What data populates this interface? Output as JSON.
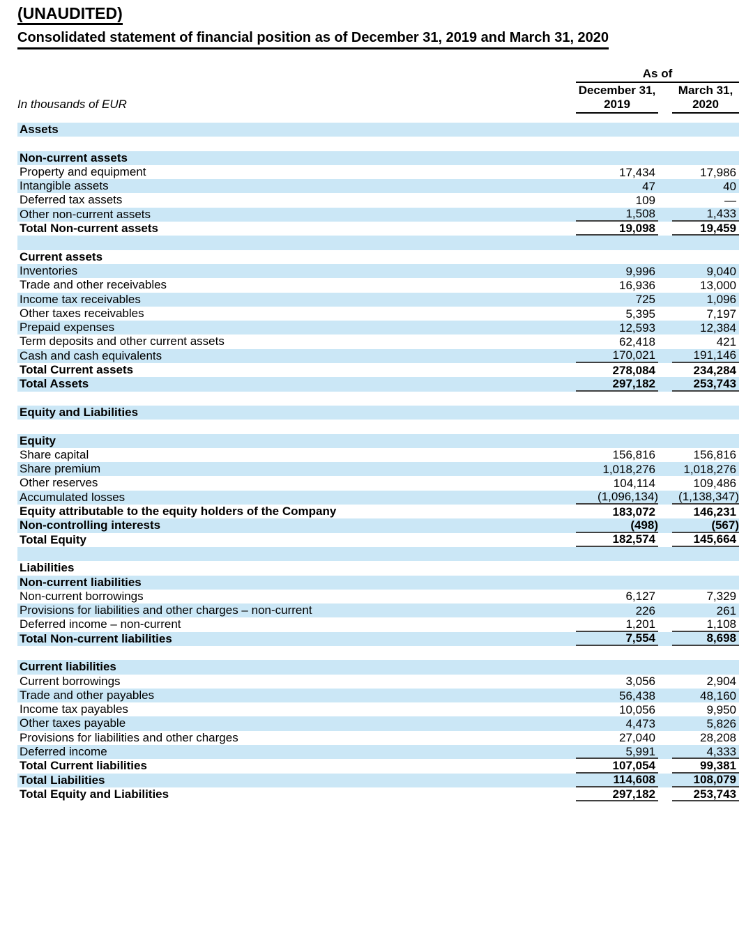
{
  "page": {
    "title": "(UNAUDITED)",
    "subtitle": "Consolidated statement of financial position as of December 31, 2019 and March 31, 2020",
    "unit_note": "In thousands of EUR",
    "group_header": "As of",
    "columns": [
      {
        "line1": "December 31,",
        "line2": "2019"
      },
      {
        "line1": "March 31,",
        "line2": "2020"
      }
    ]
  },
  "colors": {
    "stripe_blue": "#cbe7f6",
    "rule_dark": "#404040",
    "text": "#000000"
  },
  "rows": [
    {
      "type": "section",
      "label": "Assets",
      "v1": "",
      "v2": ""
    },
    {
      "type": "blank",
      "label": "",
      "v1": "",
      "v2": ""
    },
    {
      "type": "section",
      "label": "Non-current assets",
      "v1": "",
      "v2": ""
    },
    {
      "type": "item",
      "label": "Property and equipment",
      "v1": "17,434",
      "v2": "17,986"
    },
    {
      "type": "item",
      "label": "Intangible assets",
      "v1": "47",
      "v2": "40"
    },
    {
      "type": "item",
      "label": "Deferred tax assets",
      "v1": "109",
      "v2": "—"
    },
    {
      "type": "item",
      "label": "Other non-current assets",
      "v1": "1,508",
      "v2": "1,433",
      "line": true
    },
    {
      "type": "total",
      "label": "Total Non-current assets",
      "v1": "19,098",
      "v2": "19,459",
      "line": true
    },
    {
      "type": "blank",
      "label": "",
      "v1": "",
      "v2": ""
    },
    {
      "type": "section",
      "label": "Current assets",
      "v1": "",
      "v2": ""
    },
    {
      "type": "item",
      "label": "Inventories",
      "v1": "9,996",
      "v2": "9,040"
    },
    {
      "type": "item",
      "label": "Trade and other receivables",
      "v1": "16,936",
      "v2": "13,000"
    },
    {
      "type": "item",
      "label": "Income tax receivables",
      "v1": "725",
      "v2": "1,096"
    },
    {
      "type": "item",
      "label": "Other taxes receivables",
      "v1": "5,395",
      "v2": "7,197"
    },
    {
      "type": "item",
      "label": "Prepaid expenses",
      "v1": "12,593",
      "v2": "12,384"
    },
    {
      "type": "item",
      "label": "Term deposits and other current assets",
      "v1": "62,418",
      "v2": "421"
    },
    {
      "type": "item",
      "label": "Cash and cash equivalents",
      "v1": "170,021",
      "v2": "191,146",
      "line": true
    },
    {
      "type": "total",
      "label": "Total Current assets",
      "v1": "278,084",
      "v2": "234,284"
    },
    {
      "type": "total",
      "label": "Total Assets",
      "v1": "297,182",
      "v2": "253,743",
      "line": true
    },
    {
      "type": "blank",
      "label": "",
      "v1": "",
      "v2": ""
    },
    {
      "type": "section",
      "label": "Equity and Liabilities",
      "v1": "",
      "v2": ""
    },
    {
      "type": "blank",
      "label": "",
      "v1": "",
      "v2": ""
    },
    {
      "type": "section",
      "label": "Equity",
      "v1": "",
      "v2": ""
    },
    {
      "type": "item",
      "label": "Share capital",
      "v1": "156,816",
      "v2": "156,816"
    },
    {
      "type": "item",
      "label": "Share premium",
      "v1": "1,018,276",
      "v2": "1,018,276"
    },
    {
      "type": "item",
      "label": "Other reserves",
      "v1": "104,114",
      "v2": "109,486"
    },
    {
      "type": "item",
      "label": "Accumulated losses",
      "v1": "(1,096,134)",
      "v2": "(1,138,347)",
      "line": true
    },
    {
      "type": "total",
      "label": "Equity attributable to the equity holders of the Company",
      "v1": "183,072",
      "v2": "146,231"
    },
    {
      "type": "total",
      "label": "Non-controlling interests",
      "v1": "(498)",
      "v2": "(567)",
      "line": true
    },
    {
      "type": "total",
      "label": "Total Equity",
      "v1": "182,574",
      "v2": "145,664",
      "line": true
    },
    {
      "type": "blank",
      "label": "",
      "v1": "",
      "v2": ""
    },
    {
      "type": "section",
      "label": "Liabilities",
      "v1": "",
      "v2": ""
    },
    {
      "type": "section",
      "label": "Non-current liabilities",
      "v1": "",
      "v2": ""
    },
    {
      "type": "item",
      "label": "Non-current borrowings",
      "v1": "6,127",
      "v2": "7,329"
    },
    {
      "type": "item",
      "label": "Provisions for liabilities and other charges – non-current",
      "v1": "226",
      "v2": "261"
    },
    {
      "type": "item",
      "label": "Deferred income – non-current",
      "v1": "1,201",
      "v2": "1,108",
      "line": true
    },
    {
      "type": "total",
      "label": "Total Non-current liabilities",
      "v1": "7,554",
      "v2": "8,698",
      "line": true
    },
    {
      "type": "blank",
      "label": "",
      "v1": "",
      "v2": ""
    },
    {
      "type": "section",
      "label": "Current liabilities",
      "v1": "",
      "v2": ""
    },
    {
      "type": "item",
      "label": "Current borrowings",
      "v1": "3,056",
      "v2": "2,904"
    },
    {
      "type": "item",
      "label": "Trade and other payables",
      "v1": "56,438",
      "v2": "48,160"
    },
    {
      "type": "item",
      "label": "Income tax payables",
      "v1": "10,056",
      "v2": "9,950"
    },
    {
      "type": "item",
      "label": "Other taxes payable",
      "v1": "4,473",
      "v2": "5,826"
    },
    {
      "type": "item",
      "label": "Provisions for liabilities and other charges",
      "v1": "27,040",
      "v2": "28,208"
    },
    {
      "type": "item",
      "label": "Deferred income",
      "v1": "5,991",
      "v2": "4,333",
      "line": true
    },
    {
      "type": "total",
      "label": "Total Current liabilities",
      "v1": "107,054",
      "v2": "99,381",
      "line": true
    },
    {
      "type": "total",
      "label": "Total Liabilities",
      "v1": "114,608",
      "v2": "108,079",
      "line": true
    },
    {
      "type": "total",
      "label": "Total Equity and Liabilities",
      "v1": "297,182",
      "v2": "253,743",
      "line": true
    }
  ]
}
